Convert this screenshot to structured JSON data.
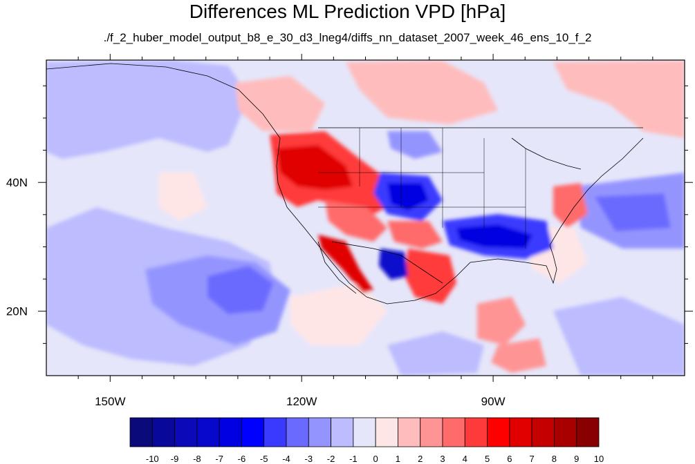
{
  "title": "Differences ML Prediction VPD [hPa]",
  "subtitle": "./f_2_huber_model_output_b8_e_30_d3_lneg4/diffs_nn_dataset_2007_week_46_ens_10_f_2",
  "map": {
    "projection": "cylindrical-equidistant",
    "lon_range": [
      -160,
      -60
    ],
    "lat_range": [
      10,
      59
    ],
    "x_ticks": [
      {
        "value": -150,
        "label": "150W"
      },
      {
        "value": -120,
        "label": "120W"
      },
      {
        "value": -90,
        "label": "90W"
      }
    ],
    "y_ticks": [
      {
        "value": 40,
        "label": "40N"
      },
      {
        "value": 20,
        "label": "20N"
      }
    ]
  },
  "colorbar": {
    "labels": [
      "-10",
      "-9",
      "-8",
      "-7",
      "-6",
      "-5",
      "-4",
      "-3",
      "-2",
      "-1",
      "0",
      "1",
      "2",
      "3",
      "4",
      "5",
      "6",
      "7",
      "8",
      "9",
      "10"
    ],
    "colors": [
      "#0a0a7a",
      "#08089a",
      "#0a0ab8",
      "#0808cc",
      "#0000e0",
      "#0000ff",
      "#3a3aff",
      "#6a6aff",
      "#9494ff",
      "#bcbcff",
      "#e6e6fa",
      "#ffe6e6",
      "#ffbcbc",
      "#ff9494",
      "#ff6a6a",
      "#ff3a3a",
      "#ff0000",
      "#e00000",
      "#c40000",
      "#a80000",
      "#880000"
    ]
  },
  "colors": {
    "background_field": "#e6e6fa",
    "frame": "#000000"
  }
}
